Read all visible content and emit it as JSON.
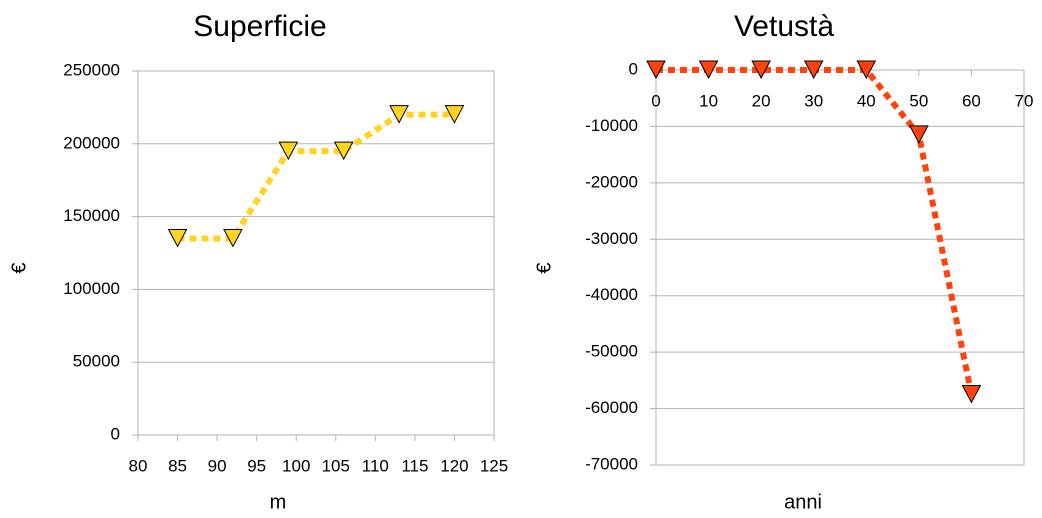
{
  "chart_data": [
    {
      "type": "line",
      "title": "Superficie",
      "x_label": "m",
      "y_label": "€",
      "x": [
        85,
        92,
        99,
        106,
        113,
        120
      ],
      "series": [
        {
          "color": "#ffd320",
          "values": [
            135000,
            135000,
            195000,
            195000,
            220000,
            220000
          ]
        }
      ],
      "xlim": [
        80,
        125
      ],
      "xticks": [
        80,
        85,
        90,
        95,
        100,
        105,
        110,
        115,
        120,
        125
      ],
      "ylim": [
        0,
        250000
      ],
      "yticks": [
        0,
        50000,
        100000,
        150000,
        200000,
        250000
      ],
      "grid": true
    },
    {
      "type": "line",
      "title": "Vetustà",
      "x_label": "anni",
      "y_label": "€",
      "x": [
        0,
        10,
        20,
        30,
        40,
        50,
        60
      ],
      "series": [
        {
          "color": "#ff420e",
          "values": [
            0,
            0,
            0,
            0,
            0,
            -11500,
            -57500
          ]
        }
      ],
      "xlim": [
        0,
        70
      ],
      "xticks": [
        0,
        10,
        20,
        30,
        40,
        50,
        60,
        70
      ],
      "ylim": [
        -70000,
        0
      ],
      "yticks": [
        -70000,
        -60000,
        -50000,
        -40000,
        -30000,
        -20000,
        -10000,
        0
      ],
      "grid": true
    }
  ]
}
